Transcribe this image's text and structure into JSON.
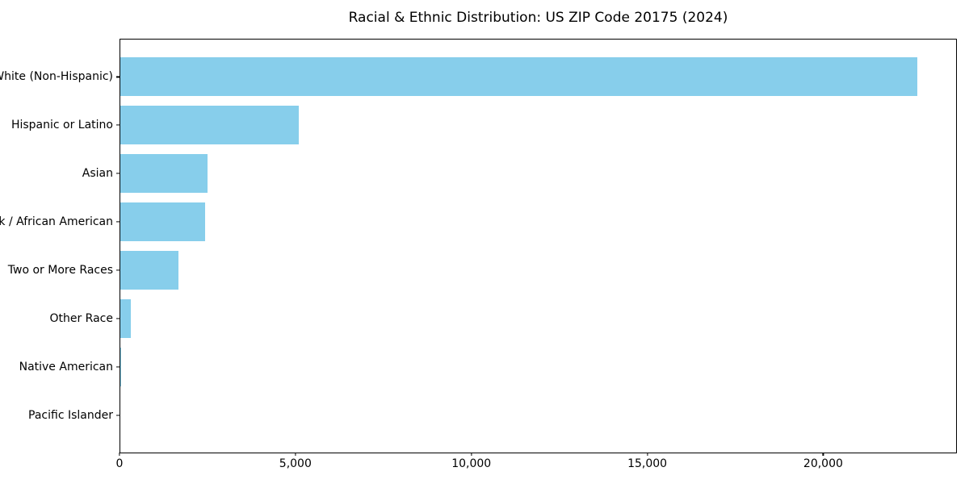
{
  "chart_data": {
    "type": "bar",
    "orientation": "horizontal",
    "title": "Racial & Ethnic Distribution: US ZIP Code 20175 (2024)",
    "categories": [
      "White (Non-Hispanic)",
      "Hispanic or Latino",
      "Asian",
      "Black / African American",
      "Two or More Races",
      "Other Race",
      "Native American",
      "Pacific Islander"
    ],
    "values": [
      22670,
      5090,
      2500,
      2430,
      1680,
      310,
      50,
      15
    ],
    "xlabel": "",
    "ylabel": "",
    "xlim": [
      0,
      23800
    ],
    "xticks": [
      0,
      5000,
      10000,
      15000,
      20000
    ],
    "xtick_labels": [
      "0",
      "5,000",
      "10,000",
      "15,000",
      "20,000"
    ],
    "bar_color": "#87CEEB",
    "spine_color": "#000000",
    "background_color": "#FFFFFF",
    "grid": false,
    "legend": null
  }
}
